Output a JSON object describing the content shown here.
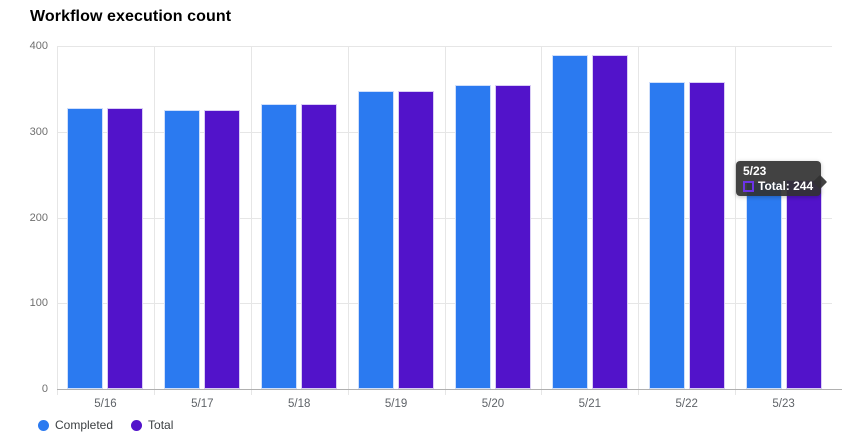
{
  "page": {
    "background": "#ffffff"
  },
  "chart_data": {
    "type": "bar",
    "title": "Workflow execution count",
    "categories": [
      "5/16",
      "5/17",
      "5/18",
      "5/19",
      "5/20",
      "5/21",
      "5/22",
      "5/23"
    ],
    "series": [
      {
        "name": "Completed",
        "color": "#2b7af0",
        "border_color": "#cfdffb",
        "values": [
          328,
          325,
          332,
          348,
          355,
          390,
          358,
          242
        ]
      },
      {
        "name": "Total",
        "color": "#5213ca",
        "border_color": "#d9cdf5",
        "values": [
          328,
          325,
          332,
          348,
          355,
          390,
          358,
          244
        ]
      }
    ],
    "xlabel": "",
    "ylabel": "",
    "ylim": [
      0,
      400
    ],
    "y_ticks": [
      0,
      100,
      200,
      300,
      400
    ],
    "grid": true,
    "legend_position": "bottom-left",
    "colors": {
      "gridline": "#e6e6e6",
      "axis_line": "#b0b0b0",
      "y_tick_label": "#6f6f6f",
      "x_tick_label": "#5f6368",
      "title": "#23272e",
      "legend_text": "#3c4043"
    }
  },
  "tooltip": {
    "category": "5/23",
    "rows": [
      {
        "series": "Total",
        "label": "Total: 244",
        "value": 244,
        "swatch_border": "#6c33e8"
      }
    ],
    "background": "rgba(50,50,50,0.92)",
    "text_color": "#ffffff"
  }
}
